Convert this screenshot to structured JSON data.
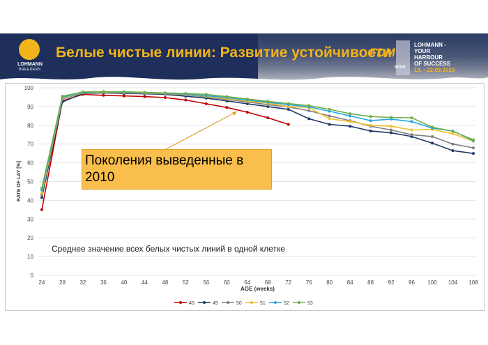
{
  "header": {
    "title": "Белые чистые линии: Развитие устойчивости",
    "logo_line1": "LOHMANN",
    "logo_line2": "BREEDERS",
    "fdm_logo": "FDM",
    "fdm_subtext": "MOIN",
    "event_lines": [
      "LOHMANN -",
      "YOUR",
      "HARBOUR",
      "OF SUCCESS"
    ],
    "event_dates": "18. - 22.09.2023"
  },
  "colors": {
    "banner": "#1d2f5a",
    "accent": "#f3b31a",
    "callout": "#f9be4b"
  },
  "callout": {
    "text": "Поколения выведенные в 2010"
  },
  "note": {
    "text": "Среднее значение всех белых чистых линий в одной клетке"
  },
  "chart_data": {
    "type": "line",
    "xlabel": "AGE (weeks)",
    "ylabel": "RATE OF LAY [%]",
    "ylim": [
      0,
      100
    ],
    "yticks": [
      0,
      10,
      20,
      30,
      40,
      50,
      60,
      70,
      80,
      90,
      100
    ],
    "x": [
      24,
      28,
      32,
      36,
      40,
      44,
      48,
      52,
      56,
      60,
      64,
      68,
      72,
      76,
      80,
      84,
      88,
      92,
      96,
      100,
      104,
      108
    ],
    "legend_position": "bottom",
    "grid": "horizontal",
    "series": [
      {
        "name": "40",
        "color": "#c00000",
        "values": [
          35,
          93,
          96.5,
          96,
          95.7,
          95.3,
          94.8,
          93.5,
          91.5,
          89.5,
          87,
          84,
          80.5,
          null,
          null,
          null,
          null,
          null,
          null,
          null,
          null,
          null
        ]
      },
      {
        "name": "49",
        "color": "#1f3864",
        "values": [
          41.5,
          92.5,
          97,
          97.3,
          97,
          96.8,
          96.5,
          95.5,
          94.5,
          93,
          91.5,
          90,
          88.5,
          83.5,
          80.5,
          79.5,
          77,
          76,
          74,
          70.5,
          66.5,
          65
        ]
      },
      {
        "name": "50",
        "color": "#7f7f7f",
        "values": [
          43,
          94,
          97.2,
          97.5,
          97.3,
          97,
          96.8,
          96.2,
          95.2,
          93.8,
          92.5,
          91,
          89.8,
          87.8,
          85,
          82.5,
          79.5,
          77.5,
          75,
          74,
          70,
          68
        ]
      },
      {
        "name": "51",
        "color": "#f2c12e",
        "values": [
          44,
          94.5,
          97.5,
          97.8,
          97.6,
          97.3,
          97,
          96.5,
          95.5,
          94.2,
          93,
          91.8,
          90,
          89.5,
          83.5,
          82,
          80,
          79.5,
          77.5,
          77.8,
          75.5,
          71.5
        ]
      },
      {
        "name": "52",
        "color": "#23a9e1",
        "values": [
          45.5,
          95,
          97.6,
          97.9,
          97.7,
          97.4,
          97.1,
          96.7,
          95.8,
          94.8,
          93.5,
          92.3,
          91,
          89.8,
          87.5,
          85,
          82.5,
          83.3,
          82,
          78.5,
          77,
          71.8
        ]
      },
      {
        "name": "53",
        "color": "#70ad47",
        "values": [
          46.5,
          95.5,
          97.8,
          98,
          97.9,
          97.6,
          97.3,
          97,
          96.5,
          95.3,
          94,
          92.8,
          91.6,
          90.5,
          88.5,
          86.2,
          84.7,
          84.2,
          84,
          79,
          76.8,
          72.3
        ]
      }
    ]
  }
}
